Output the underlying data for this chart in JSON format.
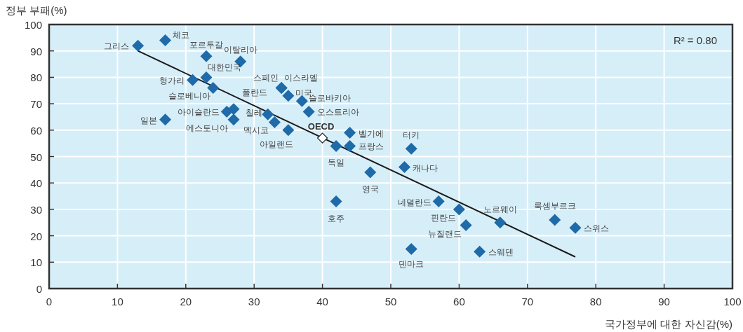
{
  "chart_data": {
    "type": "scatter",
    "xlabel": "국가정부에 대한 자신감(%)",
    "ylabel": "정부 부패(%)",
    "xlim": [
      0,
      100
    ],
    "xticks": [
      0,
      10,
      20,
      30,
      40,
      50,
      60,
      70,
      80,
      90,
      100
    ],
    "ylim": [
      0,
      100
    ],
    "yticks": [
      0,
      10,
      20,
      30,
      40,
      50,
      60,
      70,
      80,
      90,
      100
    ],
    "grid": true,
    "annotations": [
      "R² = 0.80"
    ],
    "series": [
      {
        "type": "scatter",
        "color": "#1f6aa9",
        "marker": "diamond",
        "x": [
          13,
          17,
          23,
          28,
          23,
          21,
          24,
          27,
          26,
          27,
          17,
          32,
          33,
          35,
          34,
          34,
          35,
          37,
          38,
          44,
          44,
          42,
          53,
          52,
          47,
          42,
          57,
          60,
          61,
          66,
          74,
          77,
          63,
          53
        ],
        "values": [
          92,
          94,
          88,
          86,
          80,
          79,
          76,
          68,
          67,
          64,
          64,
          66,
          63,
          60,
          76,
          76,
          73,
          71,
          67,
          59,
          54,
          54,
          53,
          46,
          44,
          33,
          33,
          30,
          24,
          25,
          26,
          23,
          14,
          15
        ],
        "value_labels": [
          "그리스",
          "체코",
          "포르투갈",
          "이탈리아",
          "대한민국",
          "헝가리",
          "슬로베니아",
          "폴란드",
          "아이슬란드",
          "에스토니아",
          "일본",
          "칠레",
          "멕시코",
          "아일랜드",
          "스페인",
          "이스라엘",
          "미국",
          "슬로바키아",
          "오스트리아",
          "벨기에",
          "프랑스",
          "독일",
          "터키",
          "캐나다",
          "영국",
          "호주",
          "네덜란드",
          "핀란드",
          "뉴질랜드",
          "노르웨이",
          "룩셈부르크",
          "스위스",
          "스웨덴",
          "덴마크"
        ]
      },
      {
        "type": "scatter",
        "name": "OECD",
        "color": "#ffffff",
        "marker": "diamond",
        "x": [
          40
        ],
        "values": [
          57
        ]
      },
      {
        "type": "line",
        "color": "#1a1a1a",
        "marker": "none",
        "x": [
          13,
          77
        ],
        "values": [
          90,
          12
        ]
      }
    ]
  }
}
